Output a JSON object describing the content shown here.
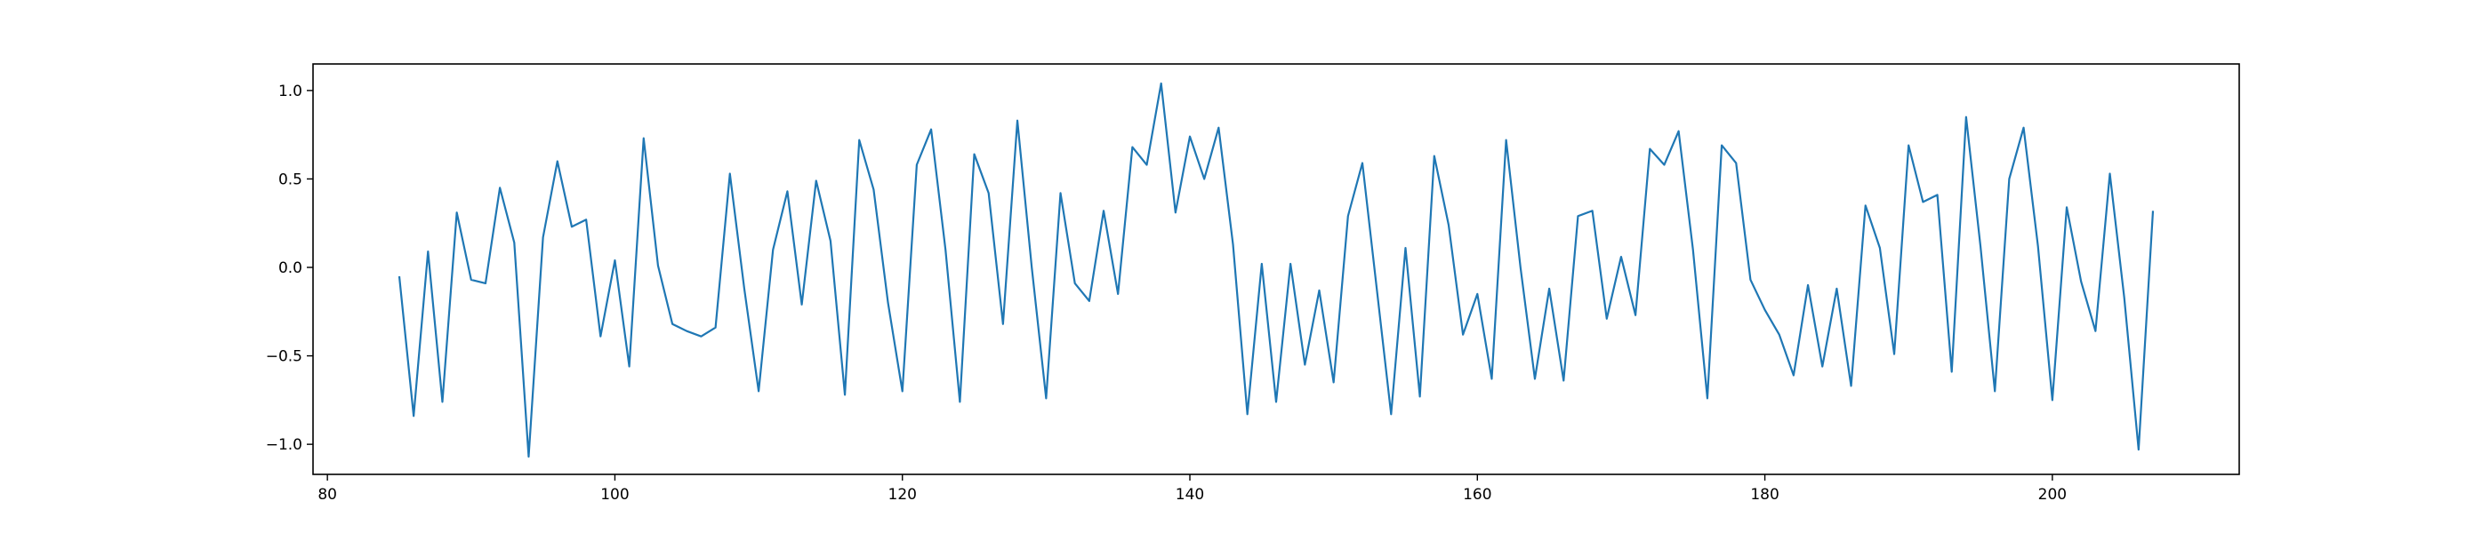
{
  "chart_data": {
    "type": "line",
    "title": "",
    "xlabel": "",
    "ylabel": "",
    "xlim": [
      79,
      213
    ],
    "ylim": [
      -1.17,
      1.15
    ],
    "x_ticks": [
      80,
      100,
      120,
      140,
      160,
      180,
      200
    ],
    "x_tick_labels": [
      "80",
      "100",
      "120",
      "140",
      "160",
      "180",
      "200"
    ],
    "y_ticks": [
      -1.0,
      -0.5,
      0.0,
      0.5,
      1.0
    ],
    "y_tick_labels": [
      "−1.0",
      "−0.5",
      "0.0",
      "0.5",
      "1.0"
    ],
    "grid": false,
    "legend": "none",
    "series": [
      {
        "color": "#1f77b4",
        "x_start": 85,
        "x_step": 1,
        "values": [
          -0.05,
          -0.84,
          0.09,
          -0.76,
          0.31,
          -0.07,
          -0.09,
          0.45,
          0.14,
          -1.07,
          0.17,
          0.6,
          0.23,
          0.27,
          -0.39,
          0.04,
          -0.56,
          0.73,
          0.01,
          -0.32,
          -0.36,
          -0.39,
          -0.34,
          0.53,
          -0.12,
          -0.7,
          0.1,
          0.43,
          -0.21,
          0.49,
          0.15,
          -0.72,
          0.72,
          0.44,
          -0.2,
          -0.7,
          0.58,
          0.78,
          0.1,
          -0.76,
          0.64,
          0.42,
          -0.32,
          0.83,
          0.0,
          -0.74,
          0.42,
          -0.09,
          -0.19,
          0.32,
          -0.15,
          0.68,
          0.58,
          1.04,
          0.31,
          0.74,
          0.5,
          0.79,
          0.13,
          -0.83,
          0.02,
          -0.76,
          0.02,
          -0.55,
          -0.13,
          -0.65,
          0.29,
          0.59,
          -0.12,
          -0.83,
          0.11,
          -0.73,
          0.63,
          0.24,
          -0.38,
          -0.15,
          -0.63,
          0.72,
          0.0,
          -0.63,
          -0.12,
          -0.64,
          0.29,
          0.32,
          -0.29,
          0.06,
          -0.27,
          0.67,
          0.58,
          0.77,
          0.1,
          -0.74,
          0.69,
          0.59,
          -0.07,
          -0.24,
          -0.38,
          -0.61,
          -0.1,
          -0.56,
          -0.12,
          -0.67,
          0.35,
          0.11,
          -0.49,
          0.69,
          0.37,
          0.41,
          -0.59,
          0.85,
          0.12,
          -0.7,
          0.5,
          0.79,
          0.12,
          -0.75,
          0.34,
          -0.08,
          -0.36,
          0.53,
          -0.17,
          -1.03,
          0.32
        ]
      }
    ]
  }
}
